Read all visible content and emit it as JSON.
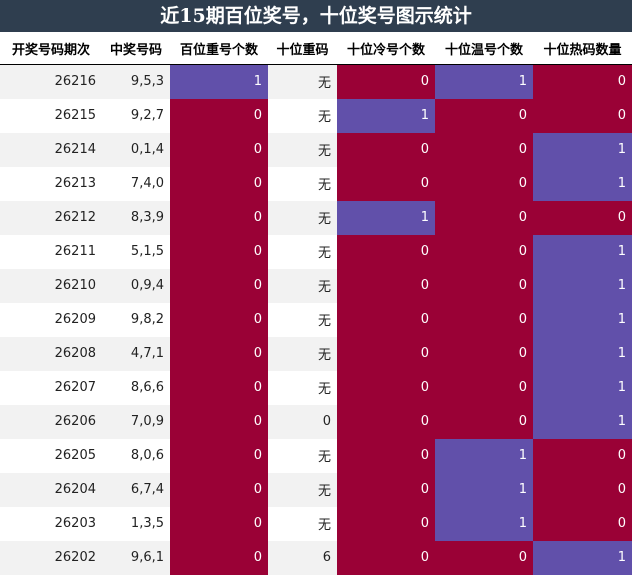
{
  "title": "近15期百位奖号，十位奖号图示统计",
  "colors": {
    "zero": "#9a0136",
    "one": "#6150aa",
    "header_bg": "#2f3e4f"
  },
  "headers": [
    "开奖号码期次",
    "中奖号码",
    "百位重号个数",
    "十位重码",
    "十位冷号个数",
    "十位温号个数",
    "十位热码数量"
  ],
  "rows": [
    {
      "period": "26216",
      "numbers": "9,5,3",
      "hundreds_repeat": "1",
      "tens_repeat": "无",
      "tens_cold": "0",
      "tens_warm": "1",
      "tens_hot": "0"
    },
    {
      "period": "26215",
      "numbers": "9,2,7",
      "hundreds_repeat": "0",
      "tens_repeat": "无",
      "tens_cold": "1",
      "tens_warm": "0",
      "tens_hot": "0"
    },
    {
      "period": "26214",
      "numbers": "0,1,4",
      "hundreds_repeat": "0",
      "tens_repeat": "无",
      "tens_cold": "0",
      "tens_warm": "0",
      "tens_hot": "1"
    },
    {
      "period": "26213",
      "numbers": "7,4,0",
      "hundreds_repeat": "0",
      "tens_repeat": "无",
      "tens_cold": "0",
      "tens_warm": "0",
      "tens_hot": "1"
    },
    {
      "period": "26212",
      "numbers": "8,3,9",
      "hundreds_repeat": "0",
      "tens_repeat": "无",
      "tens_cold": "1",
      "tens_warm": "0",
      "tens_hot": "0"
    },
    {
      "period": "26211",
      "numbers": "5,1,5",
      "hundreds_repeat": "0",
      "tens_repeat": "无",
      "tens_cold": "0",
      "tens_warm": "0",
      "tens_hot": "1"
    },
    {
      "period": "26210",
      "numbers": "0,9,4",
      "hundreds_repeat": "0",
      "tens_repeat": "无",
      "tens_cold": "0",
      "tens_warm": "0",
      "tens_hot": "1"
    },
    {
      "period": "26209",
      "numbers": "9,8,2",
      "hundreds_repeat": "0",
      "tens_repeat": "无",
      "tens_cold": "0",
      "tens_warm": "0",
      "tens_hot": "1"
    },
    {
      "period": "26208",
      "numbers": "4,7,1",
      "hundreds_repeat": "0",
      "tens_repeat": "无",
      "tens_cold": "0",
      "tens_warm": "0",
      "tens_hot": "1"
    },
    {
      "period": "26207",
      "numbers": "8,6,6",
      "hundreds_repeat": "0",
      "tens_repeat": "无",
      "tens_cold": "0",
      "tens_warm": "0",
      "tens_hot": "1"
    },
    {
      "period": "26206",
      "numbers": "7,0,9",
      "hundreds_repeat": "0",
      "tens_repeat": "0",
      "tens_cold": "0",
      "tens_warm": "0",
      "tens_hot": "1"
    },
    {
      "period": "26205",
      "numbers": "8,0,6",
      "hundreds_repeat": "0",
      "tens_repeat": "无",
      "tens_cold": "0",
      "tens_warm": "1",
      "tens_hot": "0"
    },
    {
      "period": "26204",
      "numbers": "6,7,4",
      "hundreds_repeat": "0",
      "tens_repeat": "无",
      "tens_cold": "0",
      "tens_warm": "1",
      "tens_hot": "0"
    },
    {
      "period": "26203",
      "numbers": "1,3,5",
      "hundreds_repeat": "0",
      "tens_repeat": "无",
      "tens_cold": "0",
      "tens_warm": "1",
      "tens_hot": "0"
    },
    {
      "period": "26202",
      "numbers": "9,6,1",
      "hundreds_repeat": "0",
      "tens_repeat": "6",
      "tens_cold": "0",
      "tens_warm": "0",
      "tens_hot": "1"
    }
  ]
}
